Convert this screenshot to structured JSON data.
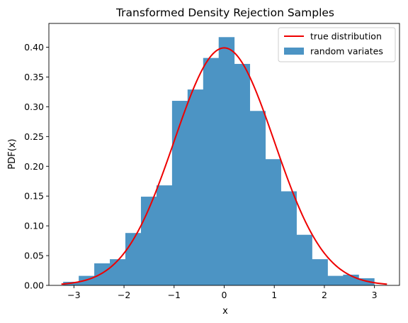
{
  "chart_data": {
    "type": "bar",
    "title": "Transformed Density Rejection Samples",
    "xlabel": "x",
    "ylabel": "PDF(x)",
    "xlim": [
      -3.5,
      3.5
    ],
    "ylim": [
      0,
      0.44
    ],
    "xticks": [
      -3,
      -2,
      -1,
      0,
      1,
      2,
      3
    ],
    "xtick_labels": [
      "−3",
      "−2",
      "−1",
      "0",
      "1",
      "2",
      "3"
    ],
    "yticks": [
      0,
      0.05,
      0.1,
      0.15,
      0.2,
      0.25,
      0.3,
      0.35,
      0.4
    ],
    "ytick_labels": [
      "0.00",
      "0.05",
      "0.10",
      "0.15",
      "0.20",
      "0.25",
      "0.30",
      "0.35",
      "0.40"
    ],
    "legend_position": "top-right",
    "series": [
      {
        "name": "random variates",
        "kind": "histogram",
        "color": "#4c94c4",
        "bin_edges": [
          -3.215,
          -2.904,
          -2.594,
          -2.283,
          -1.973,
          -1.662,
          -1.352,
          -1.041,
          -0.731,
          -0.42,
          -0.11,
          0.201,
          0.511,
          0.822,
          1.132,
          1.443,
          1.753,
          2.064,
          2.374,
          2.685,
          2.995,
          3.306
        ],
        "values": [
          0.006,
          0.016,
          0.037,
          0.044,
          0.088,
          0.149,
          0.168,
          0.31,
          0.329,
          0.382,
          0.417,
          0.372,
          0.293,
          0.212,
          0.158,
          0.085,
          0.044,
          0.016,
          0.018,
          0.012,
          0.0
        ]
      },
      {
        "name": "true distribution",
        "kind": "line",
        "color": "#ee0000",
        "x_range": [
          -3.25,
          3.25
        ],
        "function": "normal_pdf"
      }
    ]
  }
}
